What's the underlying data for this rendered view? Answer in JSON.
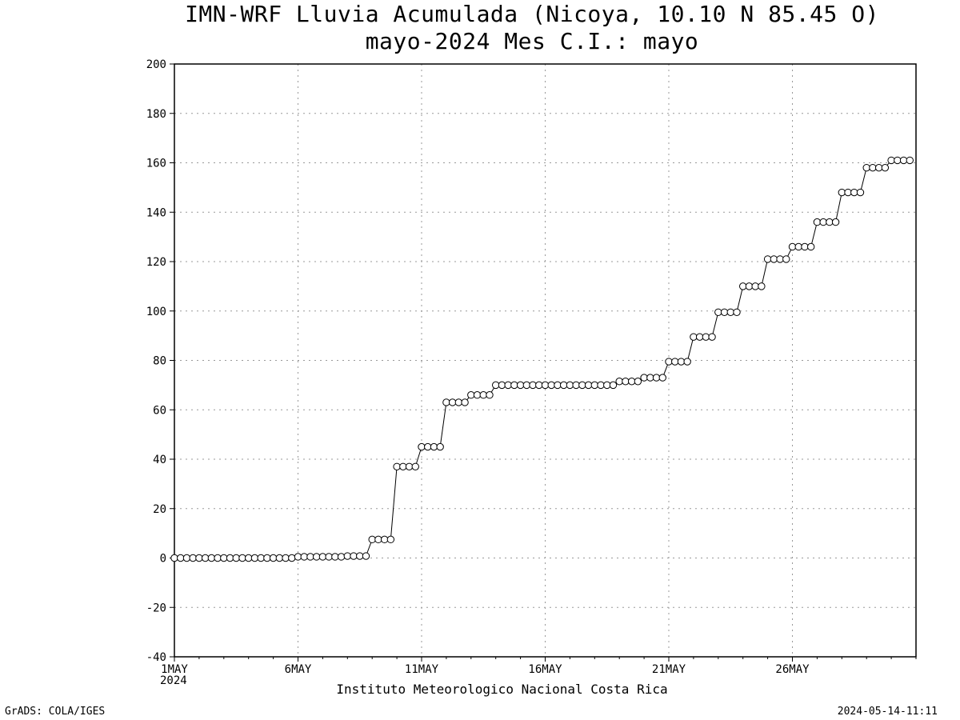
{
  "header": {
    "title_line1": "IMN-WRF  Lluvia Acumulada (Nicoya, 10.10  N 85.45  O)",
    "title_line2": "mayo-2024 Mes C.I.: mayo"
  },
  "footer": {
    "institution": "Instituto Meteorologico Nacional Costa Rica",
    "software": "GrADS: COLA/IGES",
    "timestamp": "2024-05-14-11:11",
    "year": "2024"
  },
  "chart_data": {
    "type": "line",
    "title": "IMN-WRF  Lluvia Acumulada (Nicoya, 10.10  N 85.45  O)",
    "subtitle": "mayo-2024 Mes C.I.: mayo",
    "xlabel": "",
    "ylabel": "",
    "x_unit": "day of May 2024 (1 = 1MAY 00Z, 6-hourly steps)",
    "xlim": [
      1,
      31
    ],
    "ylim": [
      -40,
      200
    ],
    "yticks": [
      -40,
      -20,
      0,
      20,
      40,
      60,
      80,
      100,
      120,
      140,
      160,
      180,
      200
    ],
    "xtick_labels": [
      {
        "x": 1,
        "label": "1MAY"
      },
      {
        "x": 6,
        "label": "6MAY"
      },
      {
        "x": 11,
        "label": "11MAY"
      },
      {
        "x": 16,
        "label": "16MAY"
      },
      {
        "x": 21,
        "label": "21MAY"
      },
      {
        "x": 26,
        "label": "26MAY"
      }
    ],
    "grid": true,
    "line_color": "#000000",
    "marker": "open-circle",
    "series": [
      {
        "x_start": 1,
        "x_step": 0.25,
        "values": [
          0,
          0,
          0,
          0,
          0,
          0,
          0,
          0,
          0,
          0,
          0,
          0,
          0,
          0,
          0,
          0,
          0,
          0,
          0,
          0,
          0.5,
          0.5,
          0.5,
          0.5,
          0.5,
          0.5,
          0.5,
          0.5,
          0.8,
          0.8,
          0.8,
          0.8,
          7.5,
          7.5,
          7.5,
          7.5,
          37,
          37,
          37,
          37,
          45,
          45,
          45,
          45,
          63,
          63,
          63,
          63,
          66,
          66,
          66,
          66,
          70,
          70,
          70,
          70,
          70,
          70,
          70,
          70,
          70,
          70,
          70,
          70,
          70,
          70,
          70,
          70,
          70,
          70,
          70,
          70,
          71.5,
          71.5,
          71.5,
          71.5,
          73,
          73,
          73,
          73,
          79.5,
          79.5,
          79.5,
          79.5,
          89.5,
          89.5,
          89.5,
          89.5,
          99.5,
          99.5,
          99.5,
          99.5,
          110,
          110,
          110,
          110,
          121,
          121,
          121,
          121,
          126,
          126,
          126,
          126,
          136,
          136,
          136,
          136,
          148,
          148,
          148,
          148,
          158,
          158,
          158,
          158,
          161,
          161,
          161,
          161
        ]
      }
    ]
  }
}
